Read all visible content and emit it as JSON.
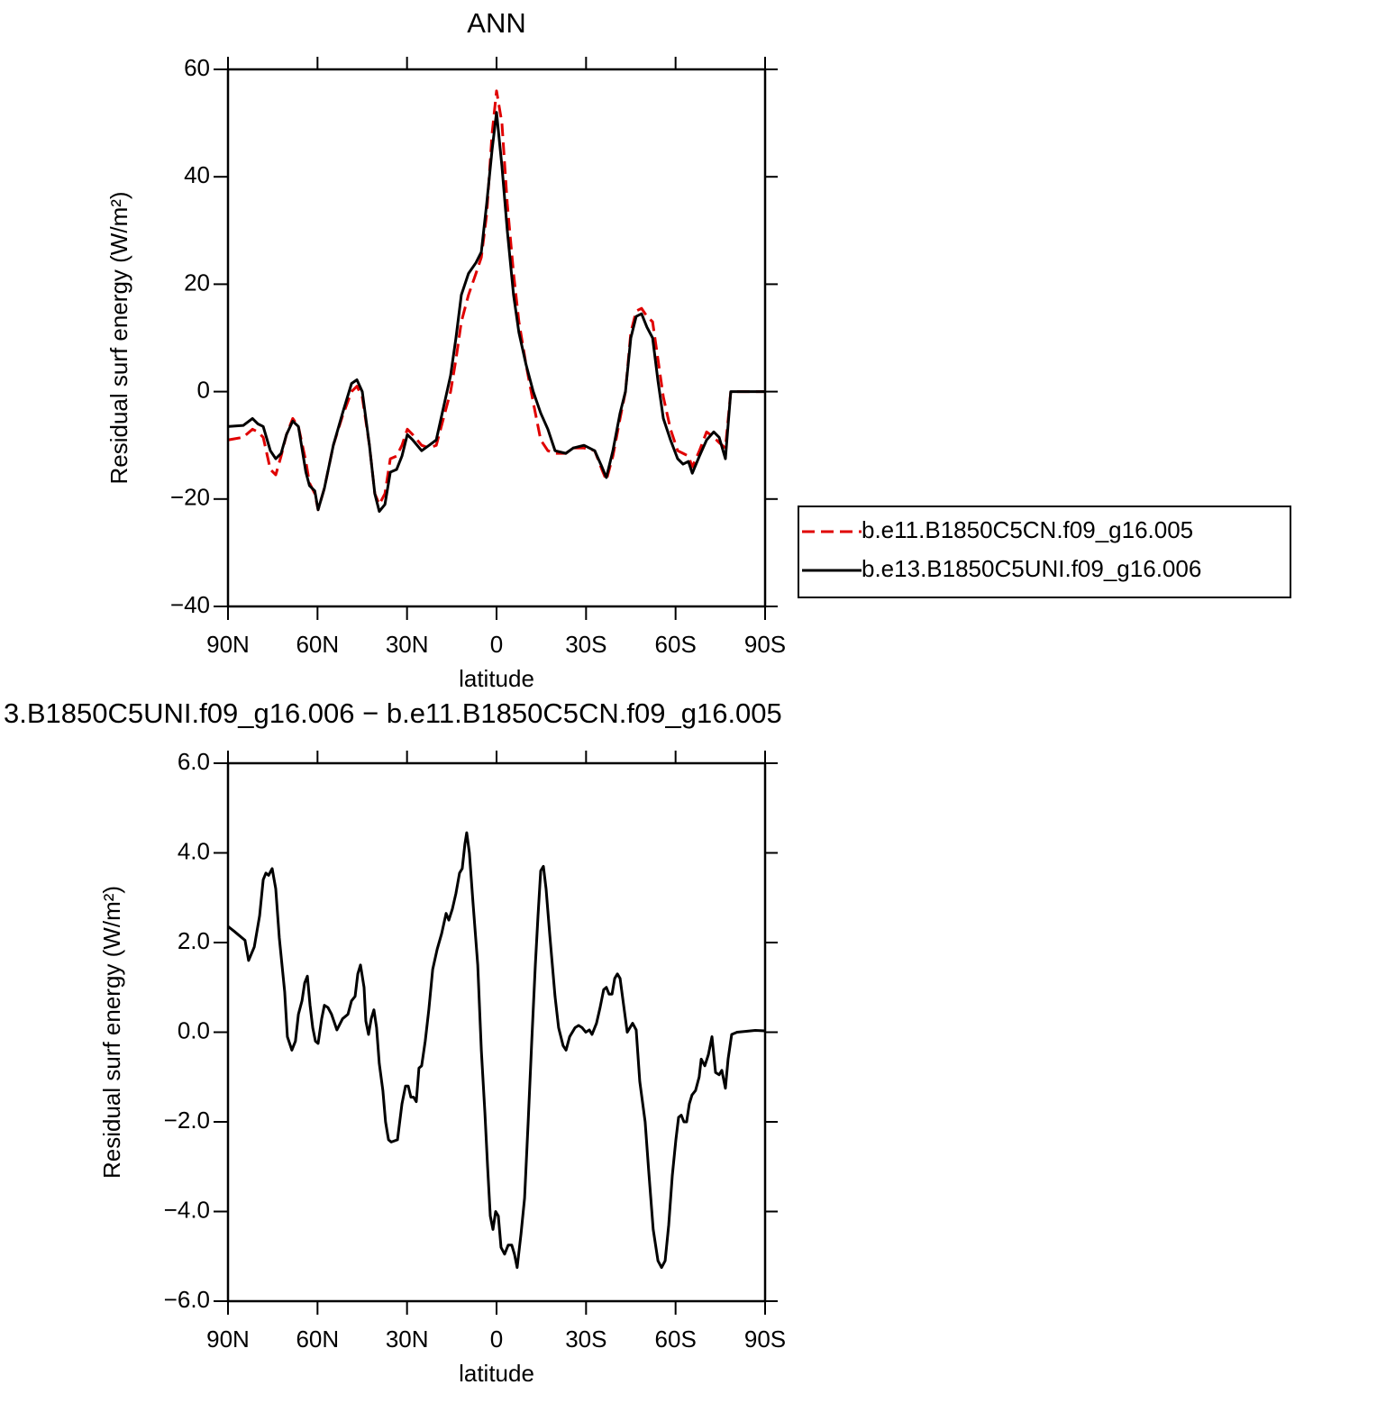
{
  "chart_data": [
    {
      "type": "line",
      "title": "ANN",
      "xlabel": "latitude",
      "ylabel": "Residual surf energy (W/m²)",
      "xlim": [
        90,
        -90
      ],
      "ylim": [
        -40,
        60
      ],
      "xticks": [
        {
          "value": 90,
          "label": "90N"
        },
        {
          "value": 60,
          "label": "60N"
        },
        {
          "value": 30,
          "label": "30N"
        },
        0,
        {
          "value": -30,
          "label": "30S"
        },
        {
          "value": -60,
          "label": "60S"
        },
        {
          "value": -90,
          "label": "90S"
        }
      ],
      "yticks": [
        {
          "value": -40,
          "label": "−40"
        },
        {
          "value": -20,
          "label": "−20"
        },
        0,
        20,
        40,
        60
      ],
      "legend": "right",
      "x": [
        90,
        84.9,
        81.8,
        80,
        78.2,
        75.8,
        74,
        72.2,
        70.4,
        68.3,
        66.4,
        63.9,
        62.7,
        60.9,
        59.8,
        57.7,
        54.7,
        51.6,
        48.6,
        46.8,
        45,
        42.6,
        40.8,
        39.3,
        37.4,
        35.6,
        33.5,
        31.7,
        29.9,
        28.1,
        25.1,
        22.6,
        20.2,
        17.8,
        15.4,
        13.6,
        11.8,
        9.4,
        6.9,
        5.1,
        3.3,
        1.5,
        0,
        -1.8,
        -3.6,
        -5.7,
        -7.5,
        -9.9,
        -12.3,
        -14.8,
        -17.2,
        -19.6,
        -23.2,
        -25.7,
        -29.3,
        -32.9,
        -35.3,
        -36.8,
        -39,
        -41.4,
        -43.2,
        -45,
        -46.8,
        -48.6,
        -50.4,
        -52.3,
        -54.1,
        -55.9,
        -58.3,
        -60.7,
        -62.5,
        -64.3,
        -65.6,
        -68,
        -70.4,
        -72.8,
        -74.6,
        -76.7,
        -78.5,
        -90
      ],
      "series": [
        {
          "name": "b.e11.B1850C5CN.f09_g16.005",
          "color": "#e00000",
          "line_style": "dashed",
          "values": [
            -9,
            -8.5,
            -7,
            -7.5,
            -8.5,
            -14.5,
            -15.5,
            -12,
            -8,
            -5,
            -6.5,
            -13,
            -17,
            -19,
            -22,
            -18,
            -10,
            -4.5,
            0,
            1,
            -1,
            -10,
            -19,
            -21,
            -19,
            -12.5,
            -12,
            -10,
            -7,
            -8,
            -10,
            -10.5,
            -10,
            -5,
            0,
            6,
            13,
            18,
            22,
            25,
            33,
            48,
            56,
            50,
            35,
            22,
            13,
            5,
            -2,
            -9,
            -11,
            -11.5,
            -11.5,
            -10.5,
            -10.5,
            -11,
            -14.5,
            -16.5,
            -12,
            -5,
            0,
            11,
            15,
            15.5,
            14,
            13,
            6,
            -1,
            -7,
            -11,
            -11.5,
            -12,
            -14,
            -11,
            -7.5,
            -8.5,
            -9.5,
            -10.5,
            0,
            0
          ]
        },
        {
          "name": "b.e13.B1850C5UNI.f09_g16.006",
          "color": "#000000",
          "line_style": "solid",
          "values": [
            -6.5,
            -6.3,
            -5,
            -6,
            -6.5,
            -11,
            -12.5,
            -11.5,
            -8,
            -5.5,
            -6.5,
            -15,
            -17.5,
            -18.5,
            -22,
            -18,
            -10,
            -4,
            1.5,
            2.2,
            0,
            -10,
            -19,
            -22.3,
            -21,
            -15,
            -14.5,
            -12,
            -8,
            -9,
            -11,
            -10,
            -9,
            -3,
            3,
            10,
            18,
            22,
            24,
            26,
            35,
            45,
            52,
            42,
            30,
            18,
            11,
            5,
            0,
            -4,
            -7,
            -11,
            -11.5,
            -10.5,
            -10,
            -11,
            -14,
            -16,
            -11,
            -4,
            0,
            10,
            14,
            14.5,
            12,
            10,
            2,
            -5,
            -9,
            -12.5,
            -13.5,
            -13,
            -15.2,
            -12,
            -9,
            -7.5,
            -8.5,
            -12.5,
            0,
            0
          ]
        }
      ]
    },
    {
      "type": "line",
      "title": "3.B1850C5UNI.f09_g16.006 − b.e11.B1850C5CN.f09_g16.005",
      "xlabel": "latitude",
      "ylabel": "Residual surf energy (W/m²)",
      "xlim": [
        90,
        -90
      ],
      "ylim": [
        -6,
        6
      ],
      "xticks": [
        {
          "value": 90,
          "label": "90N"
        },
        {
          "value": 60,
          "label": "60N"
        },
        {
          "value": 30,
          "label": "30N"
        },
        0,
        {
          "value": -30,
          "label": "30S"
        },
        {
          "value": -60,
          "label": "60S"
        },
        {
          "value": -90,
          "label": "90S"
        }
      ],
      "yticks": [
        {
          "value": -6,
          "label": "−6.0"
        },
        {
          "value": -4,
          "label": "−4.0"
        },
        {
          "value": -2,
          "label": "−2.0"
        },
        {
          "value": 0,
          "label": "0.0"
        },
        {
          "value": 2,
          "label": "2.0"
        },
        {
          "value": 4,
          "label": "4.0"
        },
        {
          "value": 6,
          "label": "6.0"
        }
      ],
      "color": "#000000",
      "x": [
        90,
        87.9,
        86.1,
        84.3,
        83.1,
        81.2,
        79.4,
        78.2,
        77.3,
        76.4,
        75.2,
        74.0,
        72.8,
        71.0,
        70.1,
        68.6,
        67.4,
        66.4,
        65.2,
        64.3,
        63.4,
        62.5,
        61.6,
        60.7,
        59.8,
        58.6,
        57.7,
        56.5,
        55.3,
        53.5,
        51.6,
        49.8,
        48.6,
        47.4,
        46.5,
        45.6,
        44.4,
        43.8,
        42.9,
        42.0,
        41.1,
        40.2,
        39.3,
        38.1,
        37.2,
        36.2,
        35.3,
        33.2,
        31.7,
        30.5,
        29.6,
        28.7,
        27.8,
        26.9,
        26.0,
        25.1,
        23.9,
        22.7,
        21.4,
        19.9,
        18.4,
        16.9,
        16.0,
        14.8,
        13.6,
        12.4,
        11.5,
        10.6,
        10.0,
        9.1,
        7.9,
        6.3,
        5.1,
        3.9,
        3.0,
        2.1,
        1.2,
        0.3,
        -0.6,
        -1.5,
        -2.7,
        -3.9,
        -5.1,
        -6.0,
        -6.9,
        -8.2,
        -9.4,
        -10.6,
        -11.8,
        -13.0,
        -13.9,
        -14.8,
        -15.7,
        -16.6,
        -17.8,
        -19.6,
        -20.8,
        -22.3,
        -23.3,
        -24.5,
        -26.3,
        -27.5,
        -28.7,
        -29.9,
        -31.1,
        -32.0,
        -33.5,
        -34.7,
        -35.9,
        -36.8,
        -37.7,
        -38.7,
        -39.6,
        -40.5,
        -41.4,
        -42.6,
        -43.8,
        -45.6,
        -46.8,
        -48.0,
        -49.8,
        -51.0,
        -52.5,
        -54.1,
        -55.3,
        -56.5,
        -57.7,
        -58.9,
        -60.1,
        -61.0,
        -61.9,
        -62.8,
        -63.7,
        -64.6,
        -65.5,
        -66.7,
        -67.9,
        -68.6,
        -69.8,
        -71.0,
        -72.2,
        -73.4,
        -74.6,
        -75.5,
        -76.7,
        -77.6,
        -78.8,
        -80.6,
        -83.7,
        -86.7,
        -90
      ],
      "values": [
        2.36,
        2.25,
        2.15,
        2.05,
        1.6,
        1.9,
        2.6,
        3.4,
        3.55,
        3.5,
        3.65,
        3.2,
        2.1,
        0.9,
        -0.1,
        -0.4,
        -0.2,
        0.4,
        0.7,
        1.1,
        1.25,
        0.6,
        0.1,
        -0.2,
        -0.25,
        0.3,
        0.6,
        0.55,
        0.4,
        0.05,
        0.3,
        0.4,
        0.7,
        0.8,
        1.3,
        1.5,
        1.0,
        0.25,
        -0.05,
        0.3,
        0.5,
        0.1,
        -0.7,
        -1.3,
        -2.0,
        -2.4,
        -2.45,
        -2.4,
        -1.6,
        -1.2,
        -1.2,
        -1.45,
        -1.45,
        -1.55,
        -0.8,
        -0.75,
        -0.2,
        0.5,
        1.4,
        1.85,
        2.2,
        2.65,
        2.5,
        2.75,
        3.1,
        3.55,
        3.65,
        4.2,
        4.45,
        4.0,
        2.9,
        1.5,
        -0.4,
        -1.8,
        -3.0,
        -4.1,
        -4.4,
        -4.0,
        -4.1,
        -4.8,
        -4.95,
        -4.75,
        -4.75,
        -4.95,
        -5.25,
        -4.5,
        -3.7,
        -2.0,
        -0.2,
        1.5,
        2.6,
        3.6,
        3.7,
        3.2,
        2.2,
        0.8,
        0.1,
        -0.3,
        -0.4,
        -0.1,
        0.1,
        0.15,
        0.1,
        0.0,
        0.05,
        -0.05,
        0.2,
        0.55,
        0.95,
        1.0,
        0.85,
        0.85,
        1.2,
        1.3,
        1.2,
        0.6,
        0.0,
        0.2,
        0.05,
        -1.1,
        -2.0,
        -3.1,
        -4.4,
        -5.1,
        -5.25,
        -5.1,
        -4.3,
        -3.2,
        -2.4,
        -1.9,
        -1.85,
        -2.0,
        -2.0,
        -1.6,
        -1.4,
        -1.3,
        -1.0,
        -0.6,
        -0.75,
        -0.5,
        -0.1,
        -0.9,
        -0.95,
        -0.85,
        -1.25,
        -0.6,
        -0.05,
        0.0,
        0.02,
        0.04,
        0.03
      ]
    }
  ]
}
